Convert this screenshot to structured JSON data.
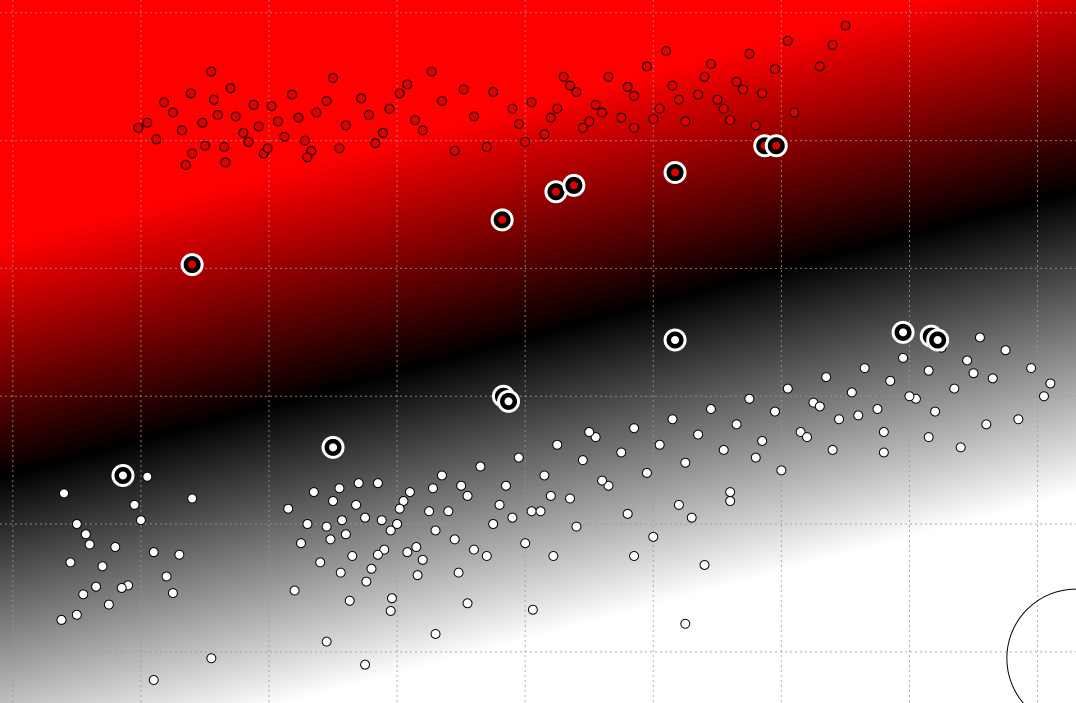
{
  "chart_data": {
    "type": "scatter",
    "title": "",
    "xlabel": "",
    "ylabel": "",
    "xlim": [
      -2.0,
      6.4
    ],
    "ylim": [
      -1.1,
      4.4
    ],
    "grid": true,
    "x_ticks": [
      -1.9,
      -0.9,
      0.1,
      1.1,
      2.1,
      3.1,
      4.1,
      5.1,
      6.1
    ],
    "y_ticks": [
      4.3,
      3.3,
      2.3,
      1.3,
      0.3,
      -0.7
    ],
    "background": {
      "kind": "decision_function_gradient",
      "colors_top_to_bottom": [
        "#ff0000",
        "#000000",
        "#ffffff"
      ]
    },
    "colors": {
      "class_red": "#e00000",
      "class_white": "#ffffff",
      "edge": "#000000",
      "grid": "#9a9a9a"
    },
    "series": [
      {
        "role": "class-red",
        "points": [
          [
            -0.85,
            3.44
          ],
          [
            -0.72,
            3.6
          ],
          [
            -0.58,
            3.38
          ],
          [
            -0.51,
            3.67
          ],
          [
            -0.4,
            3.26
          ],
          [
            -0.3,
            3.5
          ],
          [
            -0.2,
            3.71
          ],
          [
            -0.1,
            3.36
          ],
          [
            -0.02,
            3.58
          ],
          [
            0.06,
            3.2
          ],
          [
            0.17,
            3.45
          ],
          [
            0.28,
            3.66
          ],
          [
            0.38,
            3.3
          ],
          [
            0.47,
            3.52
          ],
          [
            0.6,
            3.79
          ],
          [
            0.7,
            3.42
          ],
          [
            0.82,
            3.63
          ],
          [
            0.93,
            3.28
          ],
          [
            1.04,
            3.55
          ],
          [
            1.18,
            3.74
          ],
          [
            1.3,
            3.38
          ],
          [
            1.45,
            3.61
          ],
          [
            1.55,
            3.22
          ],
          [
            1.7,
            3.49
          ],
          [
            1.85,
            3.68
          ],
          [
            -0.78,
            3.31
          ],
          [
            -0.65,
            3.52
          ],
          [
            -0.5,
            3.2
          ],
          [
            -0.42,
            3.44
          ],
          [
            -0.33,
            3.62
          ],
          [
            -0.25,
            3.25
          ],
          [
            -0.16,
            3.49
          ],
          [
            -0.06,
            3.29
          ],
          [
            0.02,
            3.41
          ],
          [
            0.12,
            3.57
          ],
          [
            0.22,
            3.33
          ],
          [
            0.33,
            3.48
          ],
          [
            0.43,
            3.22
          ],
          [
            0.55,
            3.61
          ],
          [
            0.88,
            3.5
          ],
          [
            0.99,
            3.36
          ],
          [
            1.12,
            3.67
          ],
          [
            1.24,
            3.46
          ],
          [
            1.37,
            3.84
          ],
          [
            1.62,
            3.7
          ],
          [
            -0.92,
            3.4
          ],
          [
            -0.55,
            3.11
          ],
          [
            -0.24,
            3.13
          ],
          [
            0.09,
            3.24
          ],
          [
            0.4,
            3.17
          ],
          [
            -0.35,
            3.84
          ],
          [
            0.65,
            3.24
          ],
          [
            2.05,
            3.43
          ],
          [
            2.15,
            3.6
          ],
          [
            2.25,
            3.35
          ],
          [
            2.35,
            3.55
          ],
          [
            2.45,
            3.73
          ],
          [
            2.55,
            3.4
          ],
          [
            2.65,
            3.58
          ],
          [
            2.75,
            3.8
          ],
          [
            2.85,
            3.48
          ],
          [
            2.95,
            3.65
          ],
          [
            3.05,
            3.88
          ],
          [
            3.15,
            3.55
          ],
          [
            3.25,
            3.73
          ],
          [
            3.35,
            3.45
          ],
          [
            3.45,
            3.66
          ],
          [
            3.55,
            3.9
          ],
          [
            3.65,
            3.55
          ],
          [
            3.75,
            3.76
          ],
          [
            3.85,
            3.98
          ],
          [
            3.95,
            3.67
          ],
          [
            4.05,
            3.86
          ],
          [
            4.15,
            4.08
          ],
          [
            2.1,
            3.29
          ],
          [
            2.3,
            3.48
          ],
          [
            2.5,
            3.68
          ],
          [
            2.7,
            3.52
          ],
          [
            2.9,
            3.72
          ],
          [
            3.1,
            3.47
          ],
          [
            3.3,
            3.62
          ],
          [
            3.5,
            3.8
          ],
          [
            3.7,
            3.46
          ],
          [
            3.9,
            3.42
          ],
          [
            4.2,
            3.52
          ],
          [
            4.4,
            3.88
          ],
          [
            4.5,
            4.05
          ],
          [
            3.6,
            3.62
          ],
          [
            2.4,
            3.8
          ],
          [
            2.95,
            3.4
          ],
          [
            3.2,
            4.0
          ],
          [
            4.6,
            4.2
          ],
          [
            1.8,
            3.25
          ],
          [
            3.8,
            3.7
          ],
          [
            2.0,
            3.55
          ],
          [
            2.6,
            3.45
          ]
        ]
      },
      {
        "role": "class-white",
        "points": [
          [
            -1.5,
            0.54
          ],
          [
            -1.4,
            0.3
          ],
          [
            -1.3,
            0.14
          ],
          [
            -1.2,
            -0.03
          ],
          [
            -1.1,
            0.12
          ],
          [
            -1.0,
            -0.18
          ],
          [
            -0.9,
            0.33
          ],
          [
            -0.8,
            0.08
          ],
          [
            -0.7,
            -0.11
          ],
          [
            -1.45,
            0.0
          ],
          [
            -1.35,
            -0.25
          ],
          [
            -1.25,
            -0.19
          ],
          [
            -1.15,
            -0.33
          ],
          [
            -1.05,
            -0.2
          ],
          [
            -0.95,
            0.45
          ],
          [
            -0.6,
            0.06
          ],
          [
            -0.5,
            0.5
          ],
          [
            -0.85,
            0.67
          ],
          [
            -1.52,
            -0.45
          ],
          [
            -1.4,
            -0.41
          ],
          [
            -0.65,
            -0.24
          ],
          [
            -1.33,
            0.22
          ],
          [
            0.25,
            0.42
          ],
          [
            0.35,
            0.15
          ],
          [
            0.45,
            0.55
          ],
          [
            0.55,
            0.28
          ],
          [
            0.65,
            0.58
          ],
          [
            0.75,
            0.05
          ],
          [
            0.85,
            0.35
          ],
          [
            0.95,
            0.62
          ],
          [
            1.05,
            0.25
          ],
          [
            1.15,
            0.48
          ],
          [
            1.25,
            0.12
          ],
          [
            1.35,
            0.4
          ],
          [
            1.45,
            0.68
          ],
          [
            1.55,
            0.18
          ],
          [
            1.65,
            0.52
          ],
          [
            1.75,
            0.75
          ],
          [
            1.85,
            0.3
          ],
          [
            1.95,
            0.6
          ],
          [
            2.05,
            0.82
          ],
          [
            2.15,
            0.4
          ],
          [
            2.25,
            0.68
          ],
          [
            2.35,
            0.92
          ],
          [
            2.45,
            0.5
          ],
          [
            2.55,
            0.8
          ],
          [
            2.65,
            0.98
          ],
          [
            2.75,
            0.6
          ],
          [
            2.85,
            0.86
          ],
          [
            2.95,
            1.05
          ],
          [
            3.05,
            0.7
          ],
          [
            3.15,
            0.92
          ],
          [
            3.25,
            1.12
          ],
          [
            3.35,
            0.78
          ],
          [
            3.45,
            1.0
          ],
          [
            3.55,
            1.2
          ],
          [
            3.65,
            0.88
          ],
          [
            3.75,
            1.08
          ],
          [
            3.85,
            1.28
          ],
          [
            3.95,
            0.95
          ],
          [
            4.05,
            1.18
          ],
          [
            4.15,
            1.36
          ],
          [
            4.25,
            1.02
          ],
          [
            4.35,
            1.25
          ],
          [
            4.45,
            1.45
          ],
          [
            4.55,
            1.12
          ],
          [
            4.65,
            1.33
          ],
          [
            4.75,
            1.52
          ],
          [
            4.85,
            1.2
          ],
          [
            4.95,
            1.42
          ],
          [
            5.05,
            1.6
          ],
          [
            5.15,
            1.28
          ],
          [
            5.25,
            1.5
          ],
          [
            5.35,
            1.68
          ],
          [
            5.45,
            1.36
          ],
          [
            5.55,
            1.58
          ],
          [
            5.65,
            1.76
          ],
          [
            5.75,
            1.44
          ],
          [
            5.85,
            1.66
          ],
          [
            5.95,
            1.12
          ],
          [
            6.05,
            1.52
          ],
          [
            6.15,
            1.3
          ],
          [
            0.5,
            0.0
          ],
          [
            0.7,
            0.22
          ],
          [
            0.9,
            -0.05
          ],
          [
            1.1,
            0.3
          ],
          [
            1.3,
            0.02
          ],
          [
            1.5,
            0.4
          ],
          [
            1.7,
            0.1
          ],
          [
            1.9,
            0.45
          ],
          [
            2.1,
            0.15
          ],
          [
            2.3,
            0.52
          ],
          [
            2.5,
            0.28
          ],
          [
            2.7,
            0.64
          ],
          [
            2.9,
            0.38
          ],
          [
            3.1,
            0.2
          ],
          [
            3.3,
            0.45
          ],
          [
            3.5,
            -0.02
          ],
          [
            3.7,
            0.55
          ],
          [
            3.9,
            0.82
          ],
          [
            4.1,
            0.72
          ],
          [
            4.3,
            0.98
          ],
          [
            4.5,
            0.88
          ],
          [
            4.7,
            1.15
          ],
          [
            4.9,
            1.02
          ],
          [
            5.1,
            1.3
          ],
          [
            5.3,
            1.18
          ],
          [
            5.5,
            0.9
          ],
          [
            5.7,
            1.08
          ],
          [
            0.6,
            0.48
          ],
          [
            0.8,
            0.62
          ],
          [
            1.0,
            0.1
          ],
          [
            1.2,
            0.55
          ],
          [
            1.4,
            0.25
          ],
          [
            1.6,
            0.6
          ],
          [
            1.8,
            0.05
          ],
          [
            2.0,
            0.35
          ],
          [
            0.4,
            0.3
          ],
          [
            0.58,
            0.18
          ],
          [
            0.78,
            0.45
          ],
          [
            0.98,
            0.33
          ],
          [
            1.18,
            0.08
          ],
          [
            1.38,
            0.58
          ],
          [
            0.66,
            -0.08
          ],
          [
            0.86,
            -0.15
          ],
          [
            1.06,
            -0.28
          ],
          [
            1.26,
            -0.1
          ],
          [
            0.3,
            -0.22
          ],
          [
            0.55,
            -0.62
          ],
          [
            0.85,
            -0.8
          ],
          [
            1.4,
            -0.56
          ],
          [
            1.65,
            -0.32
          ],
          [
            2.16,
            -0.37
          ],
          [
            3.35,
            -0.48
          ],
          [
            3.7,
            0.48
          ],
          [
            2.6,
            1.02
          ],
          [
            4.4,
            1.22
          ],
          [
            4.9,
            0.86
          ],
          [
            5.6,
            1.48
          ],
          [
            6.2,
            1.4
          ],
          [
            5.25,
            0.98
          ],
          [
            2.32,
            0.05
          ],
          [
            -0.35,
            -0.75
          ],
          [
            1.05,
            -0.38
          ],
          [
            2.95,
            0.05
          ],
          [
            3.4,
            0.35
          ],
          [
            -0.8,
            -0.92
          ],
          [
            0.95,
            0.06
          ],
          [
            1.58,
            -0.08
          ],
          [
            2.22,
            0.4
          ],
          [
            0.67,
            0.33
          ],
          [
            1.12,
            0.42
          ],
          [
            0.73,
            -0.3
          ]
        ]
      }
    ],
    "support_vectors": [
      {
        "x": -0.5,
        "y": 2.33,
        "class": "red"
      },
      {
        "x": 1.92,
        "y": 2.68,
        "class": "red"
      },
      {
        "x": 2.34,
        "y": 2.9,
        "class": "red"
      },
      {
        "x": 2.48,
        "y": 2.95,
        "class": "red"
      },
      {
        "x": 3.27,
        "y": 3.05,
        "class": "red"
      },
      {
        "x": 3.97,
        "y": 3.26,
        "class": "red"
      },
      {
        "x": 4.06,
        "y": 3.26,
        "class": "red"
      },
      {
        "x": -1.04,
        "y": 0.68,
        "class": "white"
      },
      {
        "x": 0.6,
        "y": 0.9,
        "class": "white"
      },
      {
        "x": 1.93,
        "y": 1.3,
        "class": "white"
      },
      {
        "x": 1.97,
        "y": 1.26,
        "class": "white"
      },
      {
        "x": 3.27,
        "y": 1.74,
        "class": "white"
      },
      {
        "x": 5.05,
        "y": 1.8,
        "class": "white"
      },
      {
        "x": 5.27,
        "y": 1.77,
        "class": "white"
      },
      {
        "x": 5.32,
        "y": 1.74,
        "class": "white"
      }
    ],
    "annotations": [
      {
        "kind": "circle-outline",
        "x": 6.4,
        "y": -0.75,
        "radius": 0.54
      }
    ]
  }
}
